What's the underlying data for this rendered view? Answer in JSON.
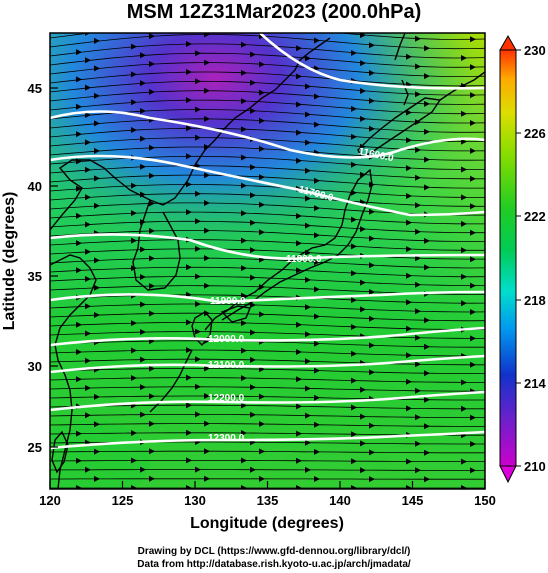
{
  "title": "MSM 12Z31Mar2023 (200.0hPa)",
  "x_axis": {
    "label": "Longitude (degrees)",
    "ticks": [
      "120",
      "125",
      "130",
      "135",
      "140",
      "145",
      "150"
    ],
    "range": [
      120,
      150
    ]
  },
  "y_axis": {
    "label": "Latitude  (degrees)",
    "ticks": [
      "25",
      "30",
      "35",
      "40",
      "45"
    ],
    "range": [
      22.5,
      47.7
    ]
  },
  "colorbar": {
    "ticks": [
      "210",
      "214",
      "218",
      "222",
      "226",
      "230"
    ],
    "range": [
      210,
      230
    ],
    "colors": [
      "#cc00cc",
      "#3322cc",
      "#00ccff",
      "#22cc22",
      "#aaee00",
      "#ff3300"
    ]
  },
  "contour_labels": [
    "11600.0",
    "11700.0",
    "11800.0",
    "11900.0",
    "12000.0",
    "12100.0",
    "12200.0",
    "12300.0"
  ],
  "footer": {
    "line1": "Drawing by DCL (https://www.gfd-dennou.org/library/dcl/)",
    "line2": "Data from http://database.rish.kyoto-u.ac.jp/arch/jmadata/"
  }
}
